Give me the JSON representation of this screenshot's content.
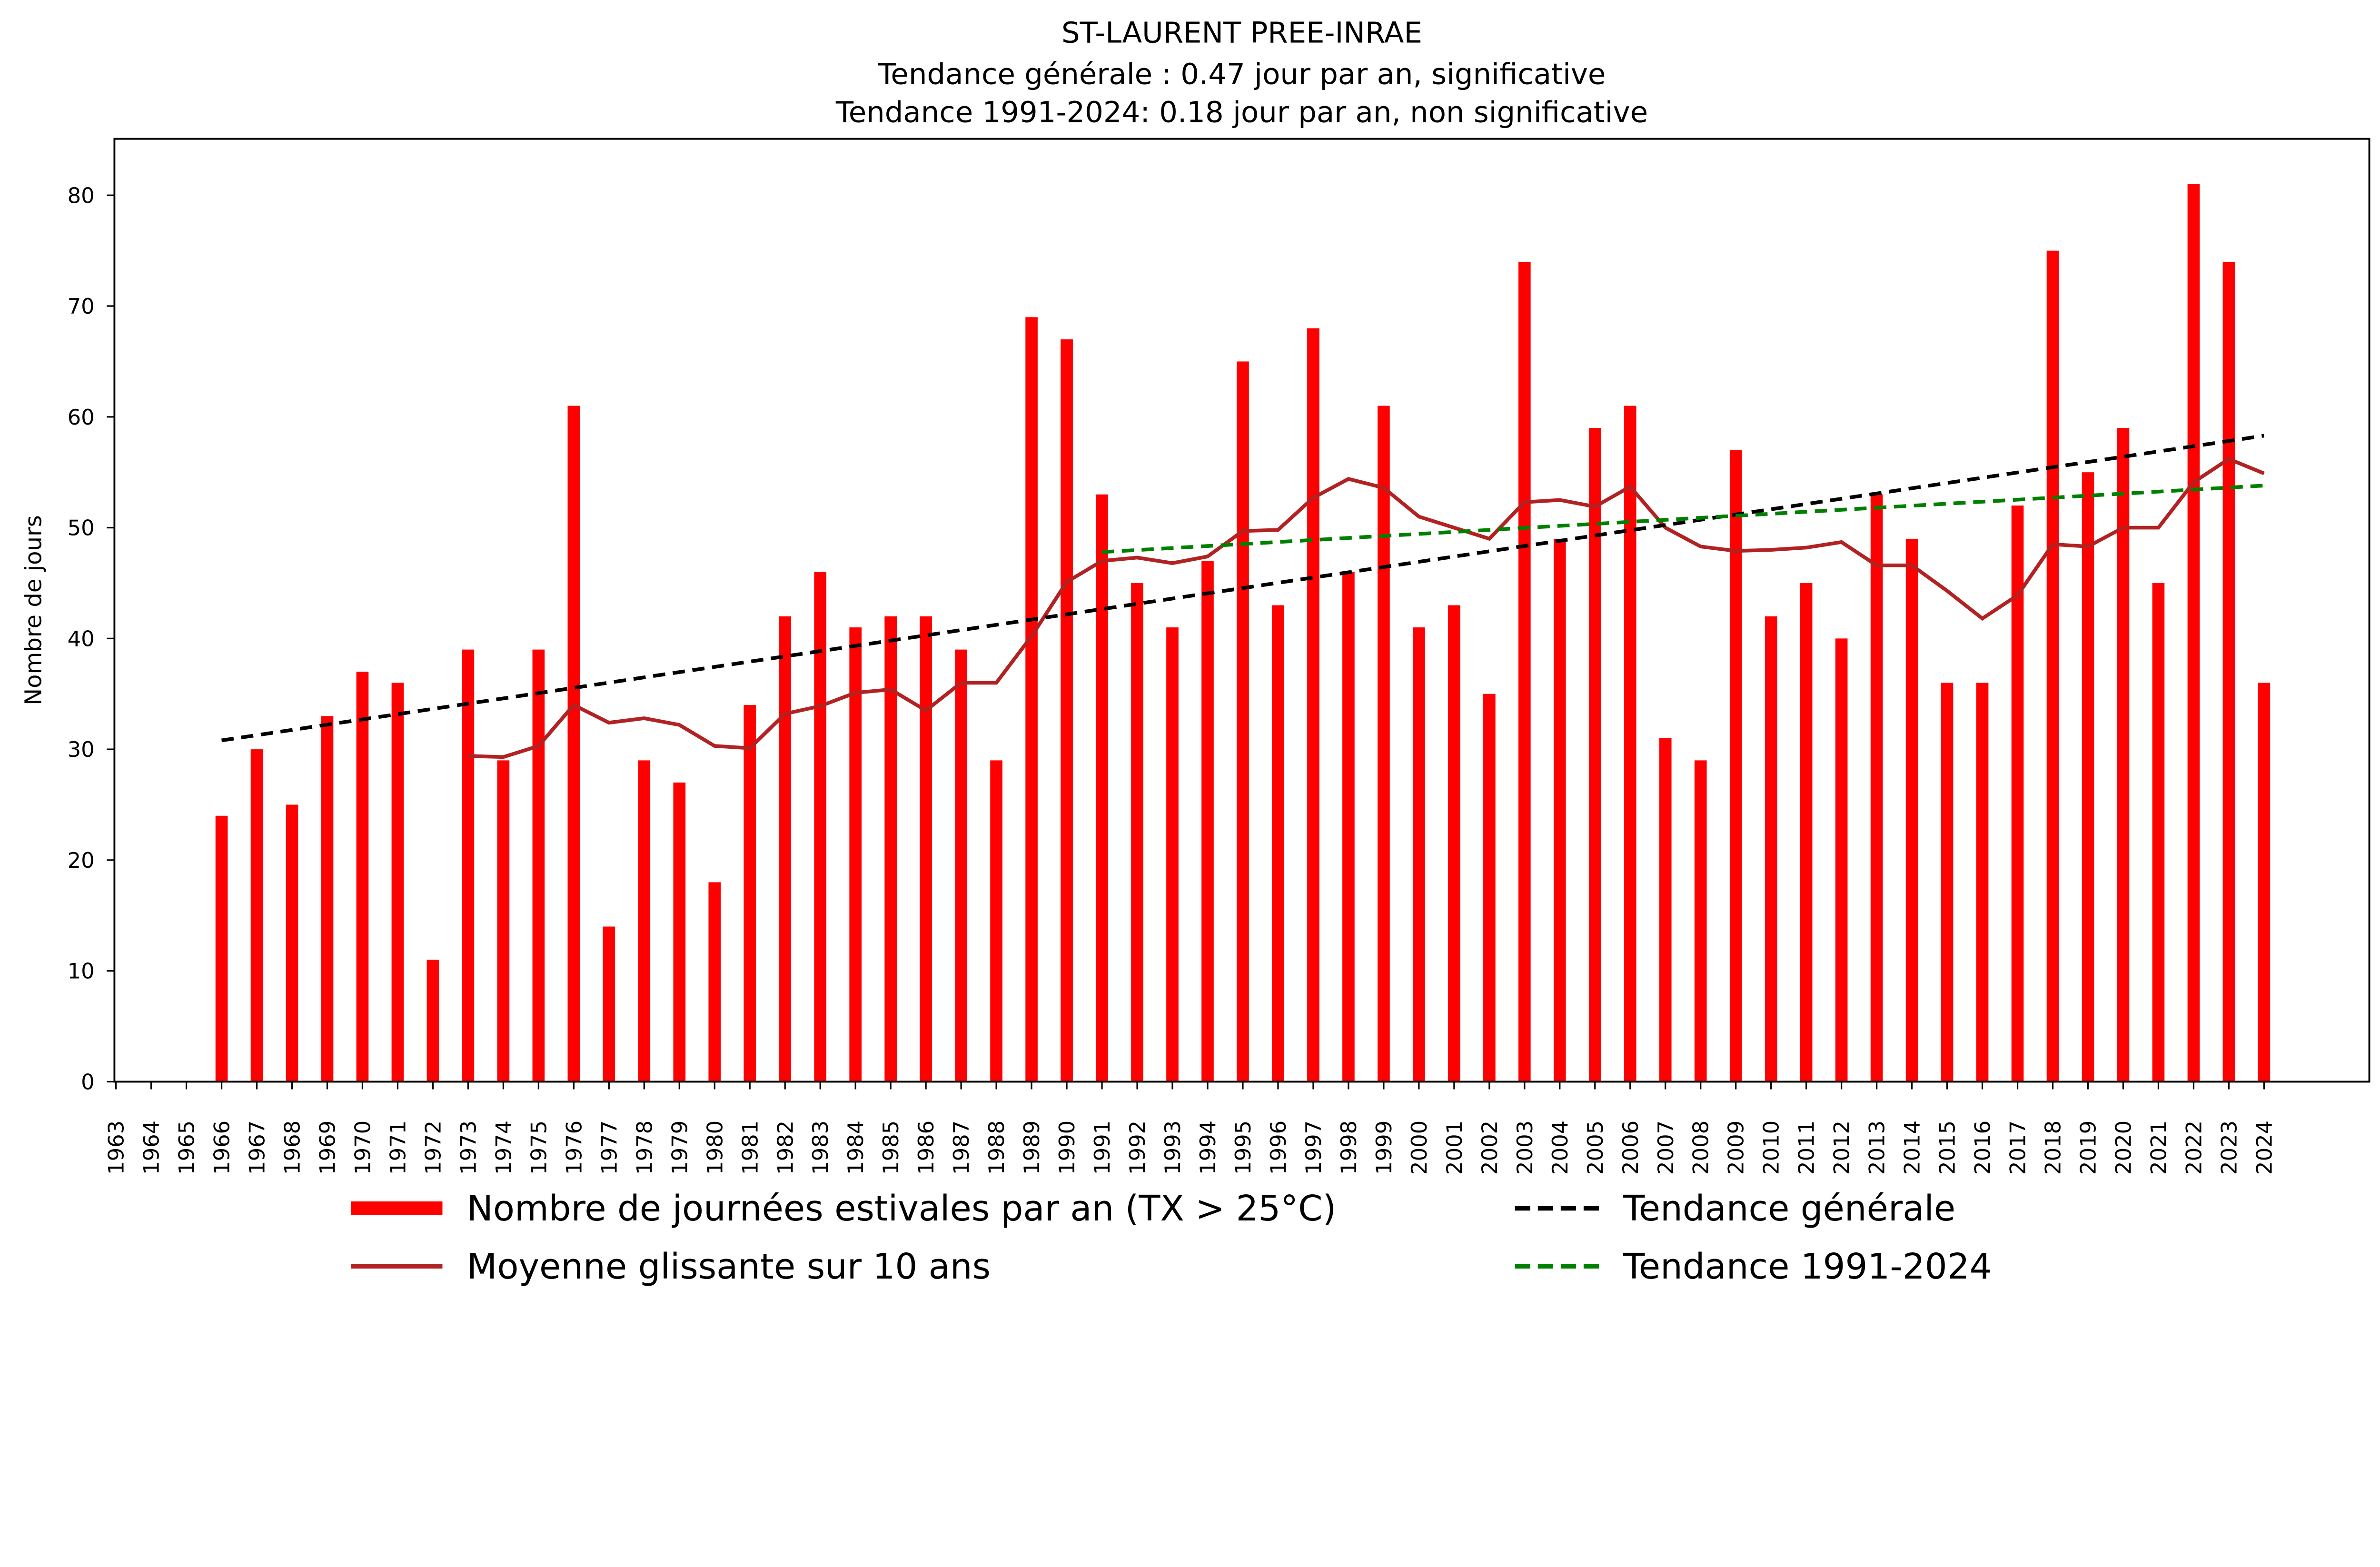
{
  "chart_data": {
    "type": "bar",
    "title": [
      "ST-LAURENT PREE-INRAE",
      "Tendance générale : 0.47 jour par an, significative",
      "Tendance 1991-2024: 0.18 jour par an, non significative"
    ],
    "xlabel": "",
    "ylabel": "Nombre de jours",
    "ylim": [
      0,
      85
    ],
    "xlim": [
      1962.9,
      2027
    ],
    "yticks": [
      0,
      10,
      20,
      30,
      40,
      50,
      60,
      70,
      80
    ],
    "years": [
      1963,
      1964,
      1965,
      1966,
      1967,
      1968,
      1969,
      1970,
      1971,
      1972,
      1973,
      1974,
      1975,
      1976,
      1977,
      1978,
      1979,
      1980,
      1981,
      1982,
      1983,
      1984,
      1985,
      1986,
      1987,
      1988,
      1989,
      1990,
      1991,
      1992,
      1993,
      1994,
      1995,
      1996,
      1997,
      1998,
      1999,
      2000,
      2001,
      2002,
      2003,
      2004,
      2005,
      2006,
      2007,
      2008,
      2009,
      2010,
      2011,
      2012,
      2013,
      2014,
      2015,
      2016,
      2017,
      2018,
      2019,
      2020,
      2021,
      2022,
      2023,
      2024
    ],
    "series": [
      {
        "name": "Nombre de journées estivales par an (TX > 25°C)",
        "type": "bar",
        "color": "#ff0000",
        "values": [
          null,
          null,
          null,
          24,
          30,
          25,
          33,
          37,
          36,
          11,
          39,
          29,
          39,
          61,
          14,
          29,
          27,
          18,
          34,
          42,
          46,
          41,
          42,
          42,
          39,
          29,
          69,
          67,
          53,
          45,
          41,
          47,
          65,
          43,
          68,
          46,
          61,
          41,
          43,
          35,
          74,
          49,
          59,
          61,
          31,
          29,
          57,
          42,
          45,
          40,
          53,
          49,
          36,
          36,
          52,
          75,
          55,
          59,
          45,
          81,
          74,
          36
        ]
      },
      {
        "name": "Moyenne glissante sur 10 ans",
        "type": "line",
        "color": "#b22222",
        "values": [
          null,
          null,
          null,
          null,
          null,
          null,
          null,
          null,
          null,
          null,
          29.4,
          29.3,
          30.3,
          34.0,
          32.4,
          32.8,
          32.2,
          30.3,
          30.1,
          33.2,
          33.9,
          35.1,
          35.4,
          33.5,
          36.0,
          36.0,
          40.2,
          45.1,
          47.0,
          47.3,
          46.8,
          47.4,
          49.7,
          49.8,
          52.7,
          54.4,
          53.6,
          51.0,
          50.0,
          49.0,
          52.3,
          52.5,
          51.9,
          53.7,
          50.0,
          48.3,
          47.9,
          48.0,
          48.2,
          48.7,
          46.6,
          46.6,
          44.3,
          41.8,
          43.9,
          48.5,
          48.3,
          50.0,
          50.0,
          54.1,
          56.2,
          54.9
        ]
      },
      {
        "name": "Tendance générale",
        "type": "line",
        "dash": true,
        "color": "#000000",
        "x": [
          1966,
          2024
        ],
        "values": [
          30.8,
          58.3
        ]
      },
      {
        "name": "Tendance 1991-2024",
        "type": "line",
        "dash": true,
        "color": "#008000",
        "x": [
          1991,
          2024
        ],
        "values": [
          47.8,
          53.8
        ]
      }
    ],
    "legend_position": "bottom"
  }
}
